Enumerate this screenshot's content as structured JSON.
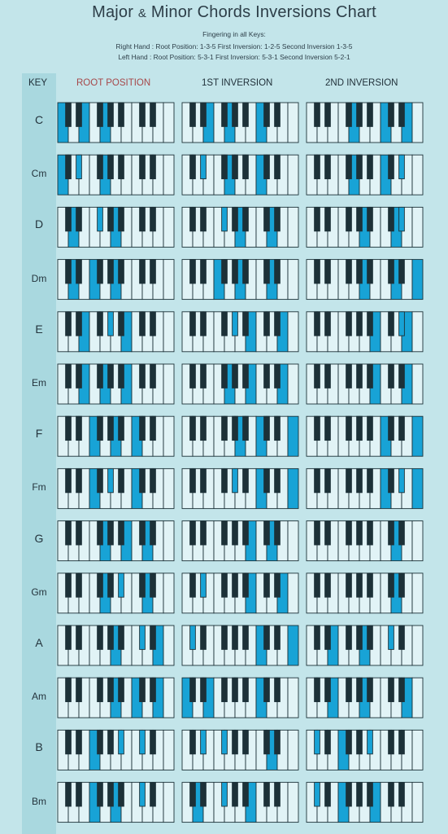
{
  "title": "Major",
  "title_amp": "&",
  "title_rest": "Minor Chords Inversions Chart",
  "subtitle": "Fingering in all Keys:",
  "right_hand": "Right Hand : Root Position: 1-3-5 First Inversion: 1-2-5 Second Inversion 1-3-5",
  "left_hand": "Left Hand : Root Position: 5-3-1 First Inversion: 5-3-1 Second Inversion 5-2-1",
  "headers": {
    "key": "KEY",
    "root": "ROOT POSITION",
    "first": "1ST INVERSION",
    "second": "2ND INVERSION"
  },
  "colors": {
    "background": "#c3e5ea",
    "key_column": "#a9d8df",
    "white_key": "#e1f3f6",
    "black_key": "#1c3138",
    "highlight": "#18a3d6",
    "root_header": "#a6484a"
  },
  "keyboard": {
    "white_keys": 11,
    "black_key_after_white": [
      0,
      1,
      3,
      4,
      5,
      7,
      8
    ]
  },
  "chords": [
    {
      "name": "C",
      "minor": false,
      "root": [
        "w0",
        "w2",
        "w4"
      ],
      "first": [
        "w2",
        "w4",
        "w7"
      ],
      "second": [
        "w4",
        "w7",
        "w9"
      ]
    },
    {
      "name": "Cm",
      "minor": true,
      "root": [
        "w0",
        "b1",
        "w4"
      ],
      "first": [
        "b1",
        "w4",
        "w7"
      ],
      "second": [
        "w4",
        "w7",
        "b8"
      ]
    },
    {
      "name": "D",
      "minor": false,
      "root": [
        "w1",
        "b3",
        "w5"
      ],
      "first": [
        "b3",
        "w5",
        "w8"
      ],
      "second": [
        "w5",
        "w8",
        "b8"
      ]
    },
    {
      "name": "Dm",
      "minor": true,
      "root": [
        "w1",
        "w3",
        "w5"
      ],
      "first": [
        "w3",
        "w5",
        "w8"
      ],
      "second": [
        "w5",
        "w8",
        "w10"
      ]
    },
    {
      "name": "E",
      "minor": false,
      "root": [
        "w2",
        "b4",
        "w6"
      ],
      "first": [
        "b4",
        "w6",
        "w9"
      ],
      "second": [
        "w6",
        "w9",
        "b8"
      ]
    },
    {
      "name": "Em",
      "minor": true,
      "root": [
        "w2",
        "w4",
        "w6"
      ],
      "first": [
        "w4",
        "w6",
        "w9"
      ],
      "second": [
        "w6",
        "w9",
        "w11"
      ]
    },
    {
      "name": "F",
      "minor": false,
      "root": [
        "w3",
        "w5",
        "w7"
      ],
      "first": [
        "w5",
        "w7",
        "w10"
      ],
      "second": [
        "w7",
        "w10",
        "w12"
      ]
    },
    {
      "name": "Fm",
      "minor": true,
      "root": [
        "w3",
        "b4",
        "w7"
      ],
      "first": [
        "b4",
        "w7",
        "w10"
      ],
      "second": [
        "w7",
        "w10",
        "b8"
      ]
    },
    {
      "name": "G",
      "minor": false,
      "root": [
        "w4",
        "w6",
        "w8"
      ],
      "first": [
        "w6",
        "w8",
        "w11"
      ],
      "second": [
        "w8",
        "w11",
        "w13"
      ]
    },
    {
      "name": "Gm",
      "minor": true,
      "root": [
        "w4",
        "b5",
        "w8"
      ],
      "first": [
        "b1",
        "w6",
        "w9"
      ],
      "second": [
        "w8",
        "w11",
        "b9"
      ]
    },
    {
      "name": "A",
      "minor": false,
      "root": [
        "w5",
        "b7",
        "w9"
      ],
      "first": [
        "b0",
        "w7",
        "w10"
      ],
      "second": [
        "w2",
        "w5",
        "b7"
      ]
    },
    {
      "name": "Am",
      "minor": true,
      "root": [
        "w5",
        "w7",
        "w9"
      ],
      "first": [
        "w0",
        "w2",
        "w7"
      ],
      "second": [
        "w2",
        "w5",
        "w9"
      ]
    },
    {
      "name": "B",
      "minor": false,
      "root": [
        "w3",
        "b5",
        "b7"
      ],
      "first": [
        "b1",
        "b3",
        "w8"
      ],
      "second": [
        "b0",
        "w3",
        "b5"
      ]
    },
    {
      "name": "Bm",
      "minor": true,
      "root": [
        "w3",
        "w5",
        "b7"
      ],
      "first": [
        "w1",
        "b3",
        "w6"
      ],
      "second": [
        "b0",
        "w3",
        "w6"
      ]
    }
  ]
}
